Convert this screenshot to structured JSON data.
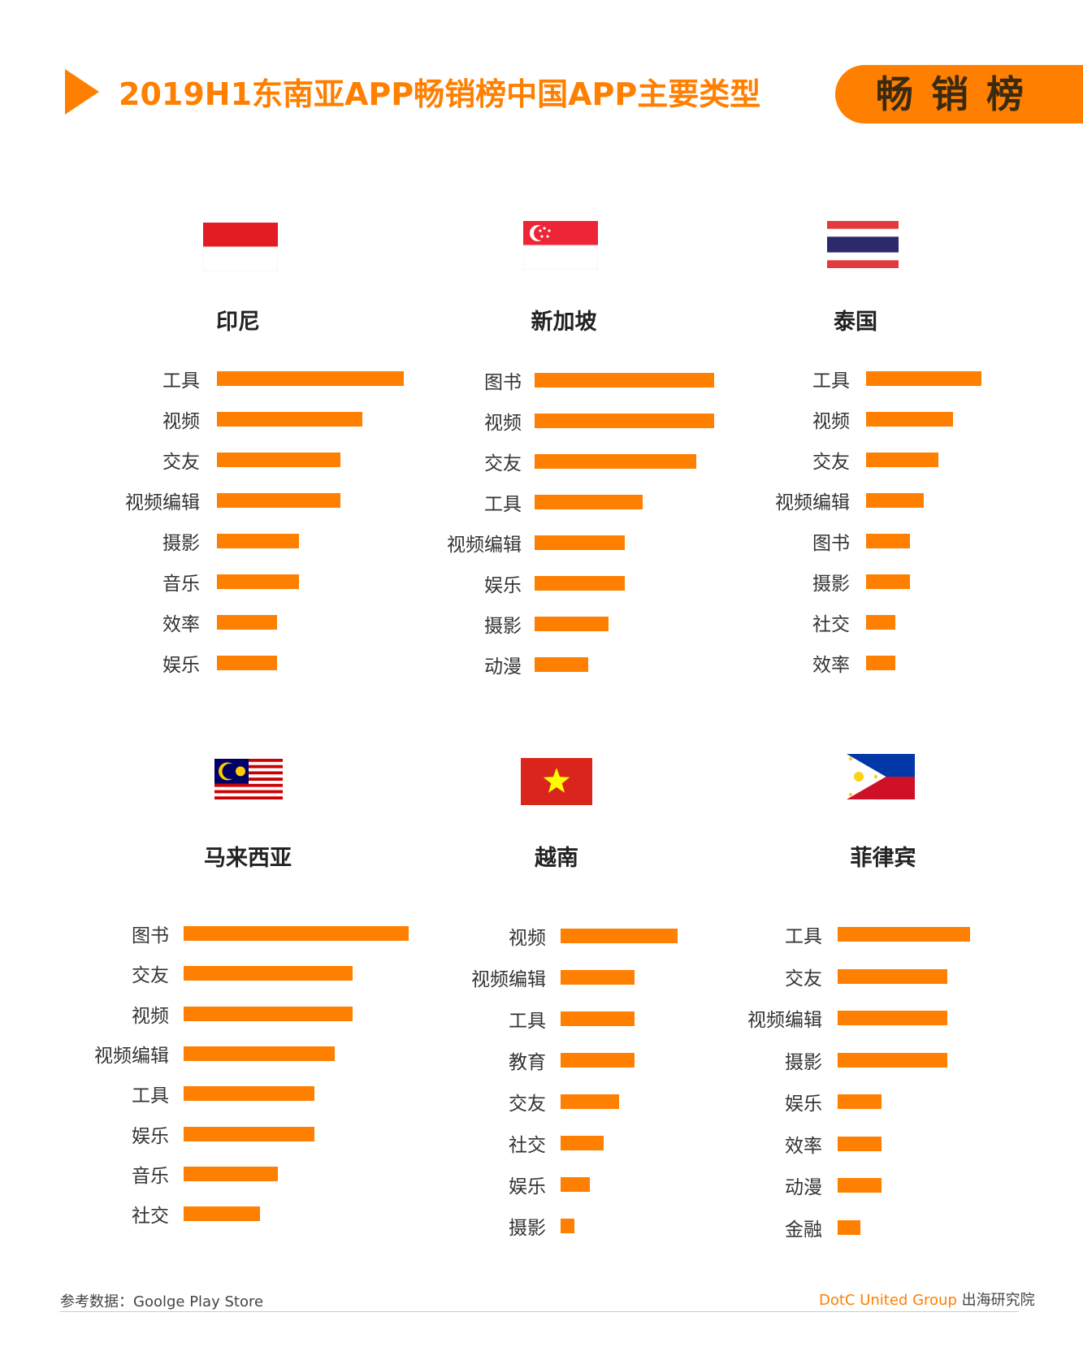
{
  "header": {
    "title": "2019H1东南亚APP畅销榜中国APP主要类型",
    "badge": "畅销榜"
  },
  "chart_data": [
    {
      "type": "bar",
      "title": "印尼",
      "categories": [
        "工具",
        "视频",
        "交友",
        "视频编辑",
        "摄影",
        "音乐",
        "效率",
        "娱乐"
      ],
      "values": [
        100,
        78,
        66,
        66,
        44,
        44,
        32,
        32
      ],
      "flag": "indonesia-flag"
    },
    {
      "type": "bar",
      "title": "新加坡",
      "categories": [
        "图书",
        "视频",
        "交友",
        "工具",
        "视频编辑",
        "娱乐",
        "摄影",
        "动漫"
      ],
      "values": [
        100,
        100,
        90,
        60,
        50,
        50,
        41,
        30
      ],
      "flag": "singapore-flag"
    },
    {
      "type": "bar",
      "title": "泰国",
      "categories": [
        "工具",
        "视频",
        "交友",
        "视频编辑",
        "图书",
        "摄影",
        "社交",
        "效率"
      ],
      "values": [
        100,
        75,
        63,
        50,
        38,
        38,
        25,
        25
      ],
      "flag": "thailand-flag"
    },
    {
      "type": "bar",
      "title": "马来西亚",
      "categories": [
        "图书",
        "交友",
        "视频",
        "视频编辑",
        "工具",
        "娱乐",
        "音乐",
        "社交"
      ],
      "values": [
        100,
        75,
        75,
        67,
        58,
        58,
        42,
        34
      ],
      "flag": "malaysia-flag"
    },
    {
      "type": "bar",
      "title": "越南",
      "categories": [
        "视频",
        "视频编辑",
        "工具",
        "教育",
        "交友",
        "社交",
        "娱乐",
        "摄影"
      ],
      "values": [
        100,
        63,
        63,
        63,
        50,
        37,
        25,
        12
      ],
      "flag": "vietnam-flag"
    },
    {
      "type": "bar",
      "title": "菲律宾",
      "categories": [
        "工具",
        "交友",
        "视频编辑",
        "摄影",
        "娱乐",
        "效率",
        "动漫",
        "金融"
      ],
      "values": [
        100,
        83,
        83,
        83,
        33,
        33,
        33,
        17
      ],
      "flag": "philippines-flag"
    }
  ],
  "footer": {
    "source": "参考数据：Goolge Play Store",
    "brand": "DotC United Group",
    "org": "出海研究院"
  },
  "colors": {
    "accent": "#ff7f00",
    "text": "#333333"
  }
}
